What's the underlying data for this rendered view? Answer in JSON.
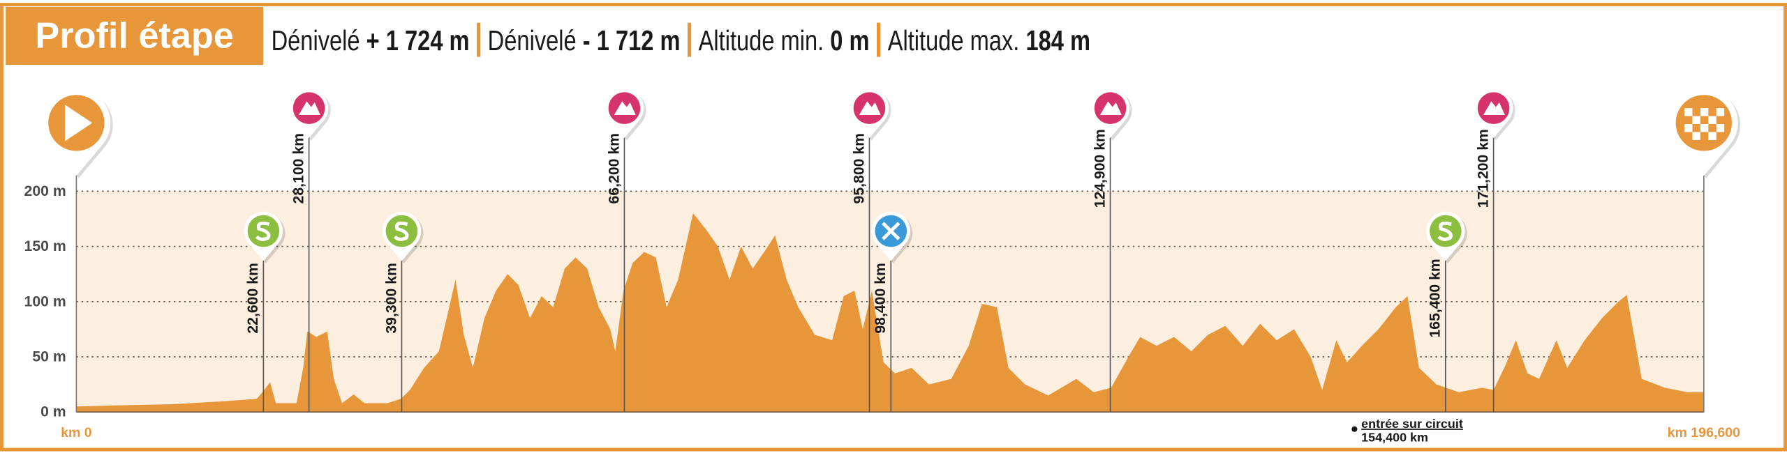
{
  "chart_data": {
    "type": "area",
    "title": "Profil étape",
    "stats": [
      {
        "label": "Dénivelé",
        "value": "+ 1 724 m"
      },
      {
        "label": "Dénivelé",
        "value": "- 1 712 m"
      },
      {
        "label": "Altitude min.",
        "value": "0 m"
      },
      {
        "label": "Altitude max.",
        "value": "184 m"
      }
    ],
    "color": "#e8963a",
    "xlim": [
      0,
      196.6
    ],
    "xticks": [
      {
        "value": 0,
        "label": "km 0"
      },
      {
        "value": 196.6,
        "label": "km 196,600"
      }
    ],
    "ylim": [
      0,
      200
    ],
    "yticks": [
      {
        "value": 0,
        "label": "0 m"
      },
      {
        "value": 50,
        "label": "50 m"
      },
      {
        "value": 100,
        "label": "100 m"
      },
      {
        "value": 150,
        "label": "150 m"
      },
      {
        "value": 200,
        "label": "200 m"
      }
    ],
    "grid": true,
    "x": [
      0,
      4.5,
      11.4,
      18.3,
      21.8,
      22.7,
      23.4,
      24.1,
      26.6,
      27.4,
      27.9,
      29.0,
      30.3,
      31.1,
      32.1,
      33.5,
      34.8,
      37.6,
      39.2,
      40.3,
      42.0,
      43.8,
      45.2,
      45.8,
      46.8,
      47.9,
      49.3,
      50.7,
      52.1,
      53.4,
      54.8,
      56.2,
      57.6,
      59.0,
      60.3,
      61.7,
      63.1,
      64.5,
      65.1,
      66.1,
      67.2,
      68.6,
      70.0,
      71.3,
      72.7,
      74.5,
      76.1,
      77.5,
      78.9,
      80.3,
      81.7,
      83.1,
      84.4,
      85.8,
      87.2,
      89.2,
      91.3,
      92.7,
      94.0,
      95.0,
      96.1,
      97.5,
      98.9,
      100.9,
      103.0,
      105.7,
      107.8,
      109.4,
      111.2,
      112.6,
      114.6,
      117.4,
      120.8,
      122.9,
      125.0,
      127.1,
      128.5,
      130.5,
      132.6,
      134.7,
      136.7,
      138.8,
      140.9,
      143.0,
      145.0,
      147.1,
      149.1,
      150.5,
      152.2,
      153.5,
      155.3,
      157.3,
      159.4,
      160.8,
      162.2,
      164.3,
      167.0,
      169.8,
      171.2,
      172.5,
      173.9,
      175.3,
      176.7,
      178.8,
      180.1,
      182.2,
      184.3,
      186.3,
      187.3,
      189.1,
      191.9,
      194.6,
      196.6
    ],
    "values": [
      5,
      6,
      7,
      10,
      12,
      20,
      27,
      8,
      8,
      40,
      73,
      68,
      73,
      30,
      8,
      16,
      8,
      8,
      12,
      20,
      40,
      55,
      100,
      120,
      70,
      40,
      85,
      110,
      125,
      115,
      85,
      105,
      95,
      130,
      140,
      130,
      95,
      75,
      55,
      110,
      135,
      145,
      140,
      95,
      120,
      180,
      165,
      150,
      120,
      150,
      130,
      145,
      160,
      120,
      95,
      70,
      65,
      105,
      110,
      75,
      110,
      45,
      35,
      40,
      25,
      30,
      60,
      98,
      95,
      40,
      25,
      15,
      30,
      18,
      22,
      50,
      68,
      60,
      68,
      55,
      70,
      78,
      60,
      80,
      65,
      75,
      50,
      20,
      65,
      45,
      60,
      75,
      95,
      105,
      40,
      25,
      18,
      22,
      20,
      40,
      65,
      35,
      30,
      65,
      40,
      65,
      85,
      100,
      106,
      30,
      22,
      18,
      18
    ],
    "markers": [
      {
        "type": "sprint",
        "km": 22.6,
        "label": "22,600 km"
      },
      {
        "type": "climb",
        "km": 28.1,
        "label": "28,100 km"
      },
      {
        "type": "sprint",
        "km": 39.3,
        "label": "39,300 km"
      },
      {
        "type": "climb",
        "km": 66.2,
        "label": "66,200 km"
      },
      {
        "type": "climb",
        "km": 95.8,
        "label": "95,800 km"
      },
      {
        "type": "feed",
        "km": 98.4,
        "label": "98,400 km"
      },
      {
        "type": "climb",
        "km": 124.9,
        "label": "124,900 km"
      },
      {
        "type": "sprint",
        "km": 165.4,
        "label": "165,400 km"
      },
      {
        "type": "climb",
        "km": 171.2,
        "label": "171,200 km"
      }
    ],
    "annotation": {
      "text": "entrée sur circuit",
      "label": "154,400 km",
      "km": 154.4
    }
  }
}
